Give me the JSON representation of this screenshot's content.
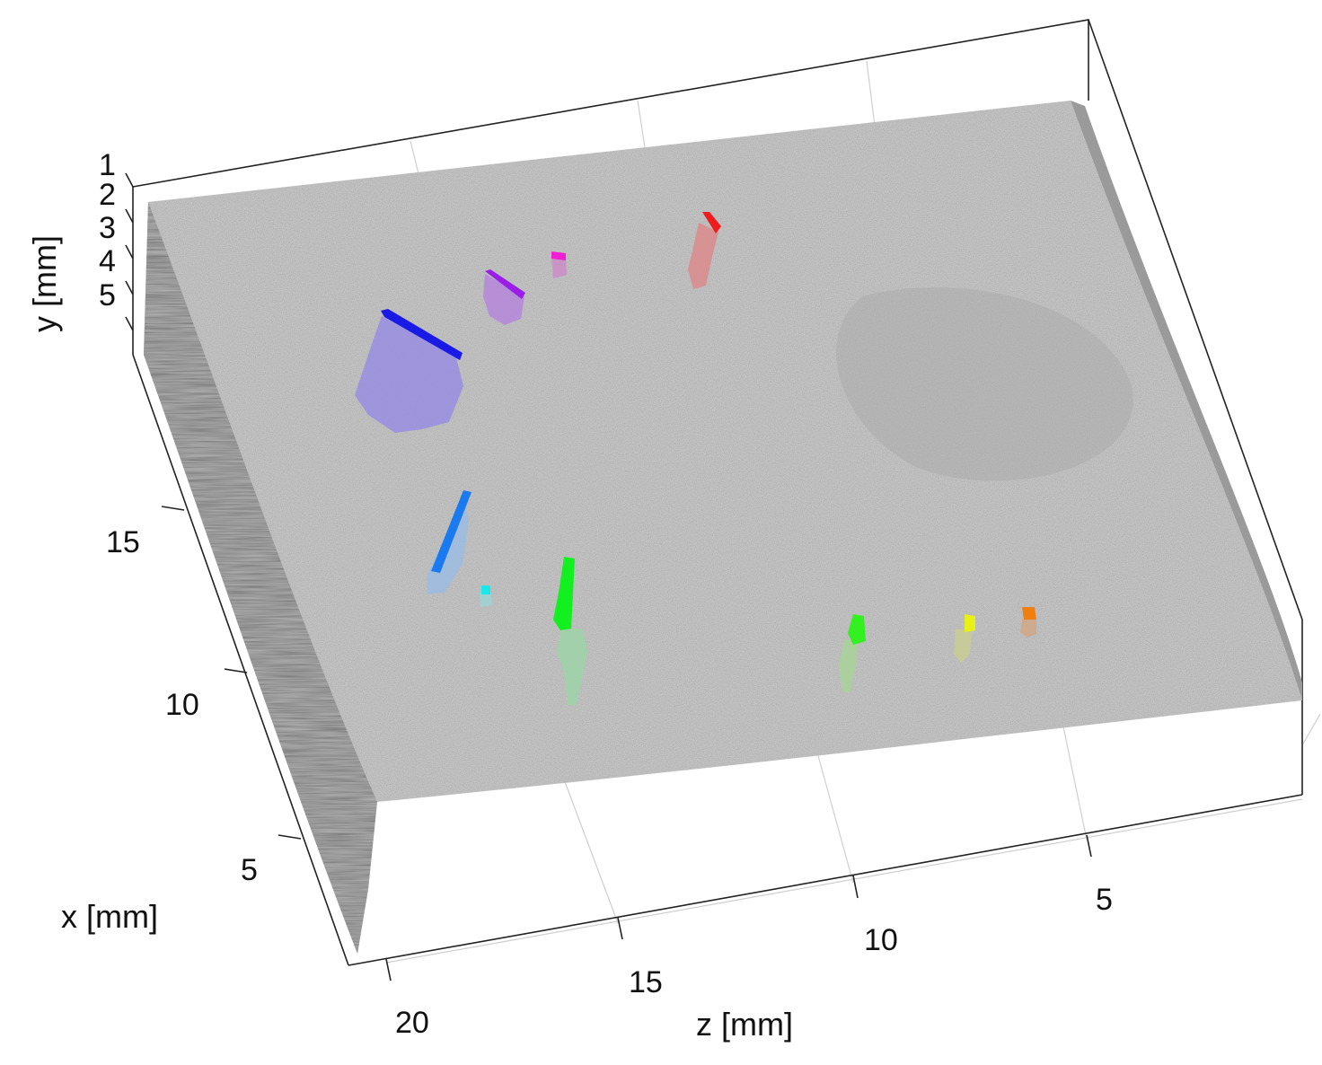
{
  "chart_data": {
    "type": "scatter",
    "title": "",
    "x_axis": {
      "label": "x [mm]",
      "ticks": [
        5,
        10,
        15
      ]
    },
    "y_axis": {
      "label": "y [mm]",
      "ticks": [
        1,
        2,
        3,
        4,
        5
      ]
    },
    "z_axis": {
      "label": "z [mm]",
      "ticks": [
        20,
        15,
        10,
        5
      ]
    },
    "grid": true,
    "legend": "none",
    "surface_color": "#bdbdbd",
    "clusters": [
      {
        "color": "#1a1ae6",
        "shade": "#9a90e0"
      },
      {
        "color": "#9b1de8",
        "shade": "#b58ad8"
      },
      {
        "color": "#f01fd0",
        "shade": "#cc8fc8"
      },
      {
        "color": "#ee1c1c",
        "shade": "#d98e8e"
      },
      {
        "color": "#1a7af0",
        "shade": "#9dbbe0"
      },
      {
        "color": "#18e8e8",
        "shade": "#9ed3d3"
      },
      {
        "color": "#12f020",
        "shade": "#9fd1a8"
      },
      {
        "color": "#33f020",
        "shade": "#a8d19a"
      },
      {
        "color": "#e8f018",
        "shade": "#c8cc96"
      },
      {
        "color": "#f07f12",
        "shade": "#cfa88a"
      }
    ]
  }
}
